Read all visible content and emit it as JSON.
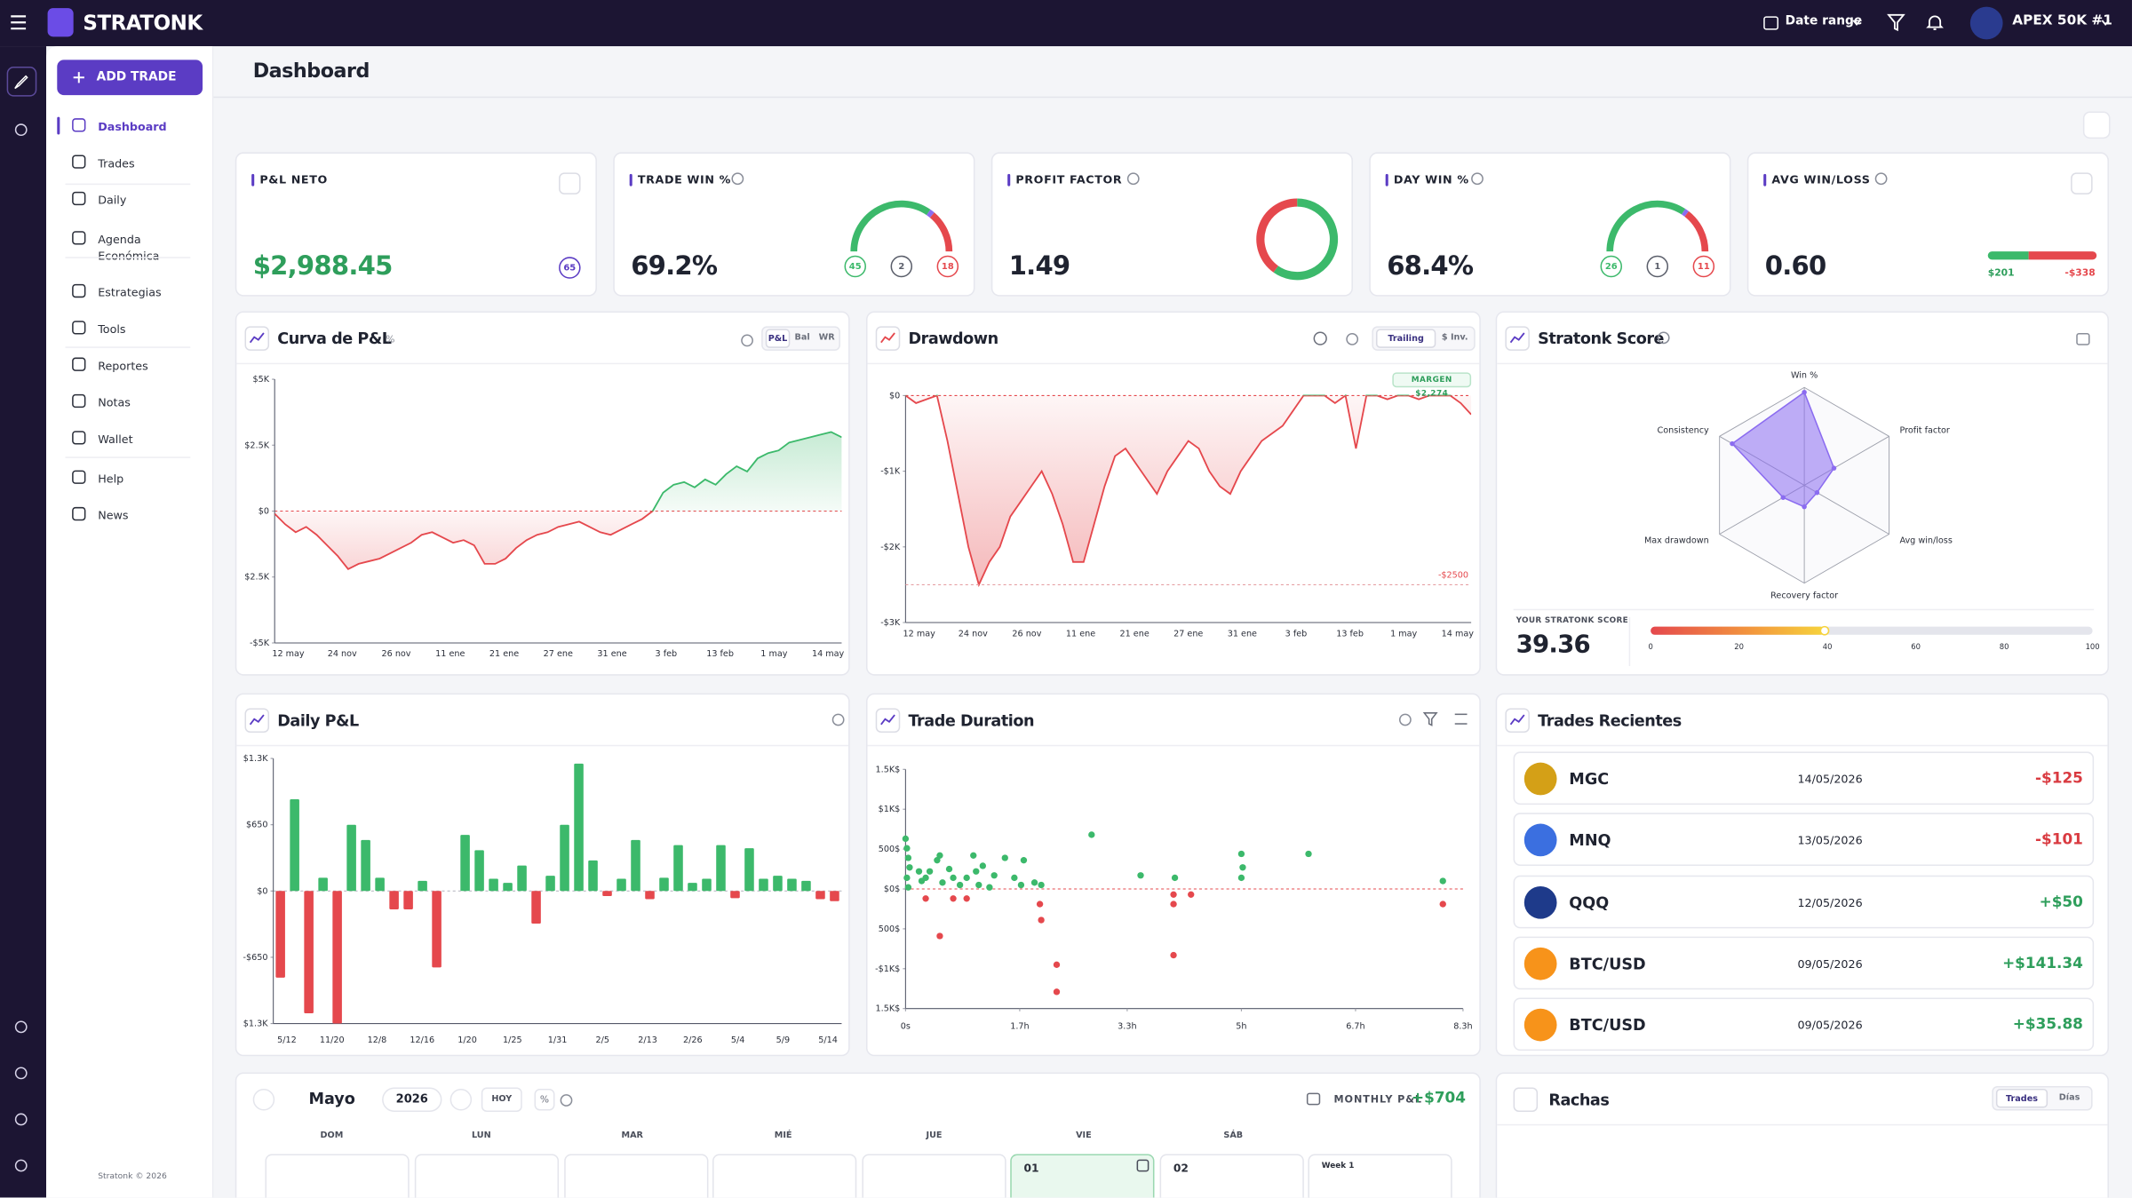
{
  "topbar": {
    "brand": "STRATONK",
    "date_range": "Date range",
    "account": "APEX 50K #1"
  },
  "sidebar": {
    "add_trade": "ADD TRADE",
    "nav": [
      "Dashboard",
      "Trades",
      "Daily",
      "Agenda Económica",
      "Estrategias",
      "Tools",
      "Reportes",
      "Notas",
      "Wallet",
      "Help",
      "News"
    ],
    "copyright": "Stratonk © 2026"
  },
  "header": {
    "title": "Dashboard"
  },
  "kpis": [
    {
      "label": "P&L NETO",
      "value": "$2,988.45",
      "badge": "65"
    },
    {
      "label": "TRADE WIN %",
      "value": "69.2%",
      "gauge": {
        "wins": 45,
        "ties": 2,
        "losses": 18
      }
    },
    {
      "label": "PROFIT FACTOR",
      "value": 1.49
    },
    {
      "label": "DAY WIN %",
      "value": "68.4%",
      "gauge": {
        "wins": 26,
        "ties": 1,
        "losses": 11
      }
    },
    {
      "label": "AVG WIN/LOSS",
      "value": "0.60",
      "win": "$201",
      "loss": "-$338"
    }
  ],
  "pnl_curve": {
    "type": "area",
    "title": "Curva de P&L",
    "unit_toggle": "%",
    "tabs": [
      "P&L",
      "Bal",
      "WR"
    ],
    "ylim": [
      -5000,
      5000
    ],
    "yticks": [
      {
        "value": 5000,
        "label": "$5K"
      },
      {
        "value": 2500,
        "label": "$2.5K"
      },
      {
        "value": 0,
        "label": "$0"
      },
      {
        "value": -2500,
        "label": "$2.5K"
      },
      {
        "value": -5000,
        "label": "-$5K"
      }
    ],
    "xticks": [
      "12 may",
      "24 nov",
      "26 nov",
      "11 ene",
      "21 ene",
      "27 ene",
      "31 ene",
      "3 feb",
      "13 feb",
      "1 may",
      "14 may"
    ],
    "values": [
      -100,
      -500,
      -800,
      -600,
      -900,
      -1300,
      -1700,
      -2200,
      -2000,
      -1900,
      -1800,
      -1600,
      -1400,
      -1200,
      -900,
      -800,
      -1000,
      -1200,
      -1100,
      -1300,
      -2000,
      -2000,
      -1800,
      -1400,
      -1100,
      -900,
      -800,
      -600,
      -500,
      -400,
      -600,
      -800,
      -900,
      -700,
      -500,
      -300,
      0,
      700,
      1000,
      1100,
      900,
      1200,
      1000,
      1400,
      1700,
      1500,
      2000,
      2200,
      2300,
      2600,
      2700,
      2800,
      2900,
      3000,
      2800
    ],
    "positive_color": "#3cb96b",
    "negative_color": "#e5484d"
  },
  "drawdown": {
    "type": "area",
    "title": "Drawdown",
    "tabs": [
      "Trailing",
      "$ Inv."
    ],
    "ylim": [
      -3000,
      0
    ],
    "yticks": [
      {
        "value": 0,
        "label": "$0"
      },
      {
        "value": -1000,
        "label": "-$1K"
      },
      {
        "value": -2000,
        "label": "-$2K"
      },
      {
        "value": -3000,
        "label": "-$3K"
      }
    ],
    "xticks": [
      "12 may",
      "24 nov",
      "26 nov",
      "11 ene",
      "21 ene",
      "27 ene",
      "31 ene",
      "3 feb",
      "13 feb",
      "1 may",
      "14 may"
    ],
    "values": [
      0,
      -100,
      -50,
      0,
      -600,
      -1300,
      -2000,
      -2500,
      -2200,
      -2000,
      -1600,
      -1400,
      -1200,
      -1000,
      -1300,
      -1700,
      -2200,
      -2200,
      -1700,
      -1200,
      -800,
      -700,
      -900,
      -1100,
      -1300,
      -1000,
      -800,
      -600,
      -700,
      -1000,
      -1200,
      -1300,
      -1000,
      -800,
      -600,
      -500,
      -400,
      -200,
      0,
      0,
      0,
      -100,
      0,
      -700,
      0,
      0,
      -50,
      0,
      0,
      -50,
      0,
      0,
      0,
      -100,
      -250
    ],
    "limit": {
      "value": -2500,
      "label": "-$2500"
    },
    "margin_label": "MARGEN $2,274",
    "positive_color": "#3cb96b",
    "negative_color": "#e5484d"
  },
  "score": {
    "type": "radar",
    "title": "Stratonk Score",
    "axes": [
      "Win %",
      "Profit factor",
      "Avg win/loss",
      "Recovery factor",
      "Max drawdown",
      "Consistency"
    ],
    "values": [
      95,
      35,
      15,
      22,
      25,
      85
    ],
    "max": 100,
    "color": "#8b6cf0",
    "score_label": "YOUR STRATONK SCORE",
    "score": 39.36,
    "scale_ticks": [
      0,
      20,
      40,
      60,
      80,
      100
    ]
  },
  "daily_pnl": {
    "type": "bar",
    "title": "Daily P&L",
    "ylim": [
      -1300,
      1300
    ],
    "yticks": [
      {
        "value": 1300,
        "label": "$1.3K"
      },
      {
        "value": 650,
        "label": "$650"
      },
      {
        "value": 0,
        "label": "$0"
      },
      {
        "value": -650,
        "label": "-$650"
      },
      {
        "value": -1300,
        "label": "$1.3K"
      }
    ],
    "xticks": [
      "5/12",
      "11/20",
      "12/8",
      "12/16",
      "1/20",
      "1/25",
      "1/31",
      "2/5",
      "2/13",
      "2/26",
      "5/4",
      "5/9",
      "5/14"
    ],
    "values": [
      -850,
      900,
      -1200,
      130,
      -1300,
      650,
      500,
      130,
      -180,
      -180,
      100,
      -750,
      0,
      550,
      400,
      120,
      80,
      250,
      -320,
      150,
      650,
      1250,
      300,
      -50,
      120,
      500,
      -80,
      130,
      450,
      80,
      120,
      450,
      -70,
      420,
      120,
      150,
      120,
      100,
      -80,
      -100
    ],
    "positive_color": "#3cb96b",
    "negative_color": "#e5484d"
  },
  "trade_duration": {
    "type": "scatter",
    "title": "Trade Duration",
    "xlim": [
      0,
      8.3
    ],
    "xticks": [
      {
        "value": 0,
        "label": "0s"
      },
      {
        "value": 1.7,
        "label": "1.7h"
      },
      {
        "value": 3.3,
        "label": "3.3h"
      },
      {
        "value": 5,
        "label": "5h"
      },
      {
        "value": 6.7,
        "label": "6.7h"
      },
      {
        "value": 8.3,
        "label": "8.3h"
      }
    ],
    "ylim": [
      -1500,
      1500
    ],
    "yticks": [
      {
        "value": 1500,
        "label": "1.5K$"
      },
      {
        "value": 1000,
        "label": "$1K$"
      },
      {
        "value": 500,
        "label": "500$"
      },
      {
        "value": 0,
        "label": "$0$"
      },
      {
        "value": -500,
        "label": "500$"
      },
      {
        "value": -1000,
        "label": "-$1K$"
      },
      {
        "value": -1500,
        "label": "1.5K$"
      }
    ],
    "x": [
      0,
      0.02,
      0.04,
      0.06,
      0.02,
      0.04,
      0.2,
      0.24,
      0.3,
      0.36,
      0.47,
      0.51,
      0.55,
      0.65,
      0.71,
      0.81,
      0.91,
      1.01,
      1.05,
      1.09,
      1.15,
      1.25,
      1.32,
      1.48,
      1.62,
      1.72,
      1.76,
      1.92,
      2.02,
      2.77,
      3.5,
      4.01,
      5,
      5.02,
      5,
      6,
      8,
      0.3,
      0.51,
      0.71,
      0.91,
      2,
      2.02,
      2.25,
      2.25,
      3.99,
      3.99,
      4.25,
      3.99,
      8
    ],
    "values": [
      630,
      510,
      390,
      270,
      140,
      20,
      220,
      100,
      140,
      220,
      360,
      420,
      80,
      250,
      140,
      50,
      140,
      420,
      220,
      50,
      290,
      20,
      170,
      390,
      140,
      50,
      360,
      80,
      50,
      680,
      170,
      140,
      440,
      270,
      140,
      440,
      100,
      -120,
      -590,
      -120,
      -120,
      -190,
      -390,
      -950,
      -1290,
      -70,
      -190,
      -70,
      -830,
      -190
    ],
    "positive_color": "#3cb96b",
    "negative_color": "#e5484d"
  },
  "recent": {
    "title": "Trades Recientes",
    "rows": [
      {
        "symbol": "MGC",
        "date": "14/05/2026",
        "pnl": "-$125"
      },
      {
        "symbol": "MNQ",
        "date": "13/05/2026",
        "pnl": "-$101"
      },
      {
        "symbol": "QQQ",
        "date": "12/05/2026",
        "pnl": "+$50"
      },
      {
        "symbol": "BTC/USD",
        "date": "09/05/2026",
        "pnl": "+$141.34"
      },
      {
        "symbol": "BTC/USD",
        "date": "09/05/2026",
        "pnl": "+$35.88"
      }
    ]
  },
  "calendar": {
    "month": "Mayo",
    "year": "2026",
    "today": "HOY",
    "percent": "%",
    "monthly_label": "MONTHLY P&L",
    "monthly_value": "+$704",
    "weekdays": [
      "DOM",
      "LUN",
      "MAR",
      "MIÉ",
      "JUE",
      "VIE",
      "SÁB"
    ],
    "cells": [
      "01",
      "02",
      "Week 1"
    ]
  },
  "streaks": {
    "title": "Rachas",
    "tabs": [
      "Trades",
      "Días"
    ]
  }
}
